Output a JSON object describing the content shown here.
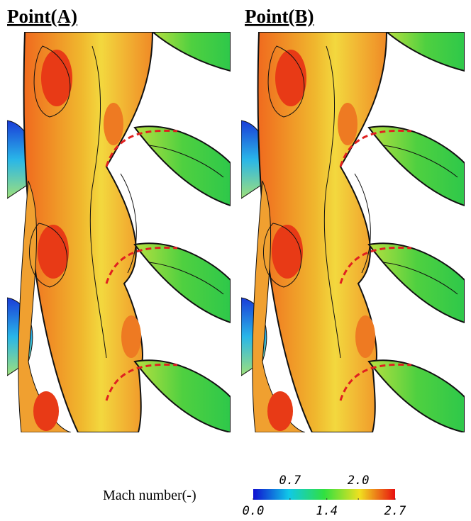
{
  "panels": [
    {
      "title": "Point(A)"
    },
    {
      "title": "Point(B)"
    }
  ],
  "colorbar": {
    "label": "Mach number(-)",
    "lim": [
      0,
      2.7
    ],
    "ticks": [
      {
        "value": 0,
        "label": "0.0"
      },
      {
        "value": 0.7,
        "label": "0.7"
      },
      {
        "value": 1.4,
        "label": "1.4"
      },
      {
        "value": 2,
        "label": "2.0"
      },
      {
        "value": 2.7,
        "label": "2.7"
      }
    ]
  }
}
